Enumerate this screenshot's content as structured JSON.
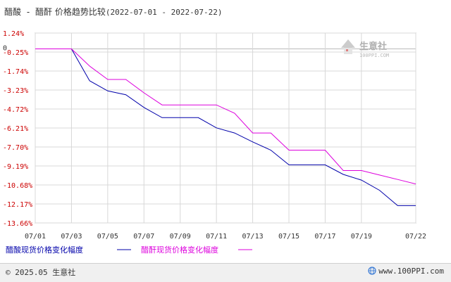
{
  "title": {
    "series_a": "醋酸",
    "separator": "-",
    "series_b": "醋酐",
    "subject": "价格趋势比较",
    "date_range": "(2022-07-01 - 2022-07-22)"
  },
  "watermark": {
    "name": "生意社",
    "url": "100PPI.COM"
  },
  "footer": {
    "copyright": "© 2025.05 生意社",
    "url": "www.100PPI.com"
  },
  "colors": {
    "series_a": "#0000aa",
    "series_b": "#dd00dd",
    "axis_label": "#cc0000",
    "grid": "#d8d8d8"
  },
  "chart_data": {
    "type": "line",
    "title": "醋酸 - 醋酐 价格趋势比较(2022-07-01 - 2022-07-22)",
    "x_ticks": [
      "07/01",
      "07/03",
      "07/05",
      "07/07",
      "07/09",
      "07/11",
      "07/13",
      "07/15",
      "07/17",
      "07/19",
      "07/22"
    ],
    "y_ticks": [
      "1.24%",
      "-0.25%",
      "-1.74%",
      "-3.23%",
      "-4.72%",
      "-6.21%",
      "-7.70%",
      "-9.19%",
      "-10.68%",
      "-12.17%",
      "-13.66%"
    ],
    "zero_label": "0",
    "ylim": [
      -13.66,
      1.24
    ],
    "grid": true,
    "legend_position": "bottom",
    "x": [
      "07/01",
      "07/02",
      "07/03",
      "07/04",
      "07/05",
      "07/06",
      "07/07",
      "07/08",
      "07/09",
      "07/10",
      "07/11",
      "07/12",
      "07/13",
      "07/14",
      "07/15",
      "07/16",
      "07/17",
      "07/18",
      "07/19",
      "07/20",
      "07/21",
      "07/22"
    ],
    "series": [
      {
        "name": "醋酸现货价格变化幅度",
        "values": [
          0,
          0,
          0,
          -2.5,
          -3.3,
          -3.6,
          -4.6,
          -5.4,
          -5.4,
          -5.4,
          -6.2,
          -6.6,
          -7.3,
          -7.95,
          -9.1,
          -9.1,
          -9.1,
          -9.85,
          -10.3,
          -11.1,
          -12.3,
          -12.3
        ]
      },
      {
        "name": "醋酐现货价格变化幅度",
        "values": [
          0,
          0,
          0,
          -1.35,
          -2.4,
          -2.4,
          -3.45,
          -4.4,
          -4.4,
          -4.4,
          -4.4,
          -5.05,
          -6.6,
          -6.6,
          -7.95,
          -7.95,
          -7.95,
          -9.55,
          -9.55,
          -9.9,
          -10.25,
          -10.6
        ]
      }
    ]
  }
}
